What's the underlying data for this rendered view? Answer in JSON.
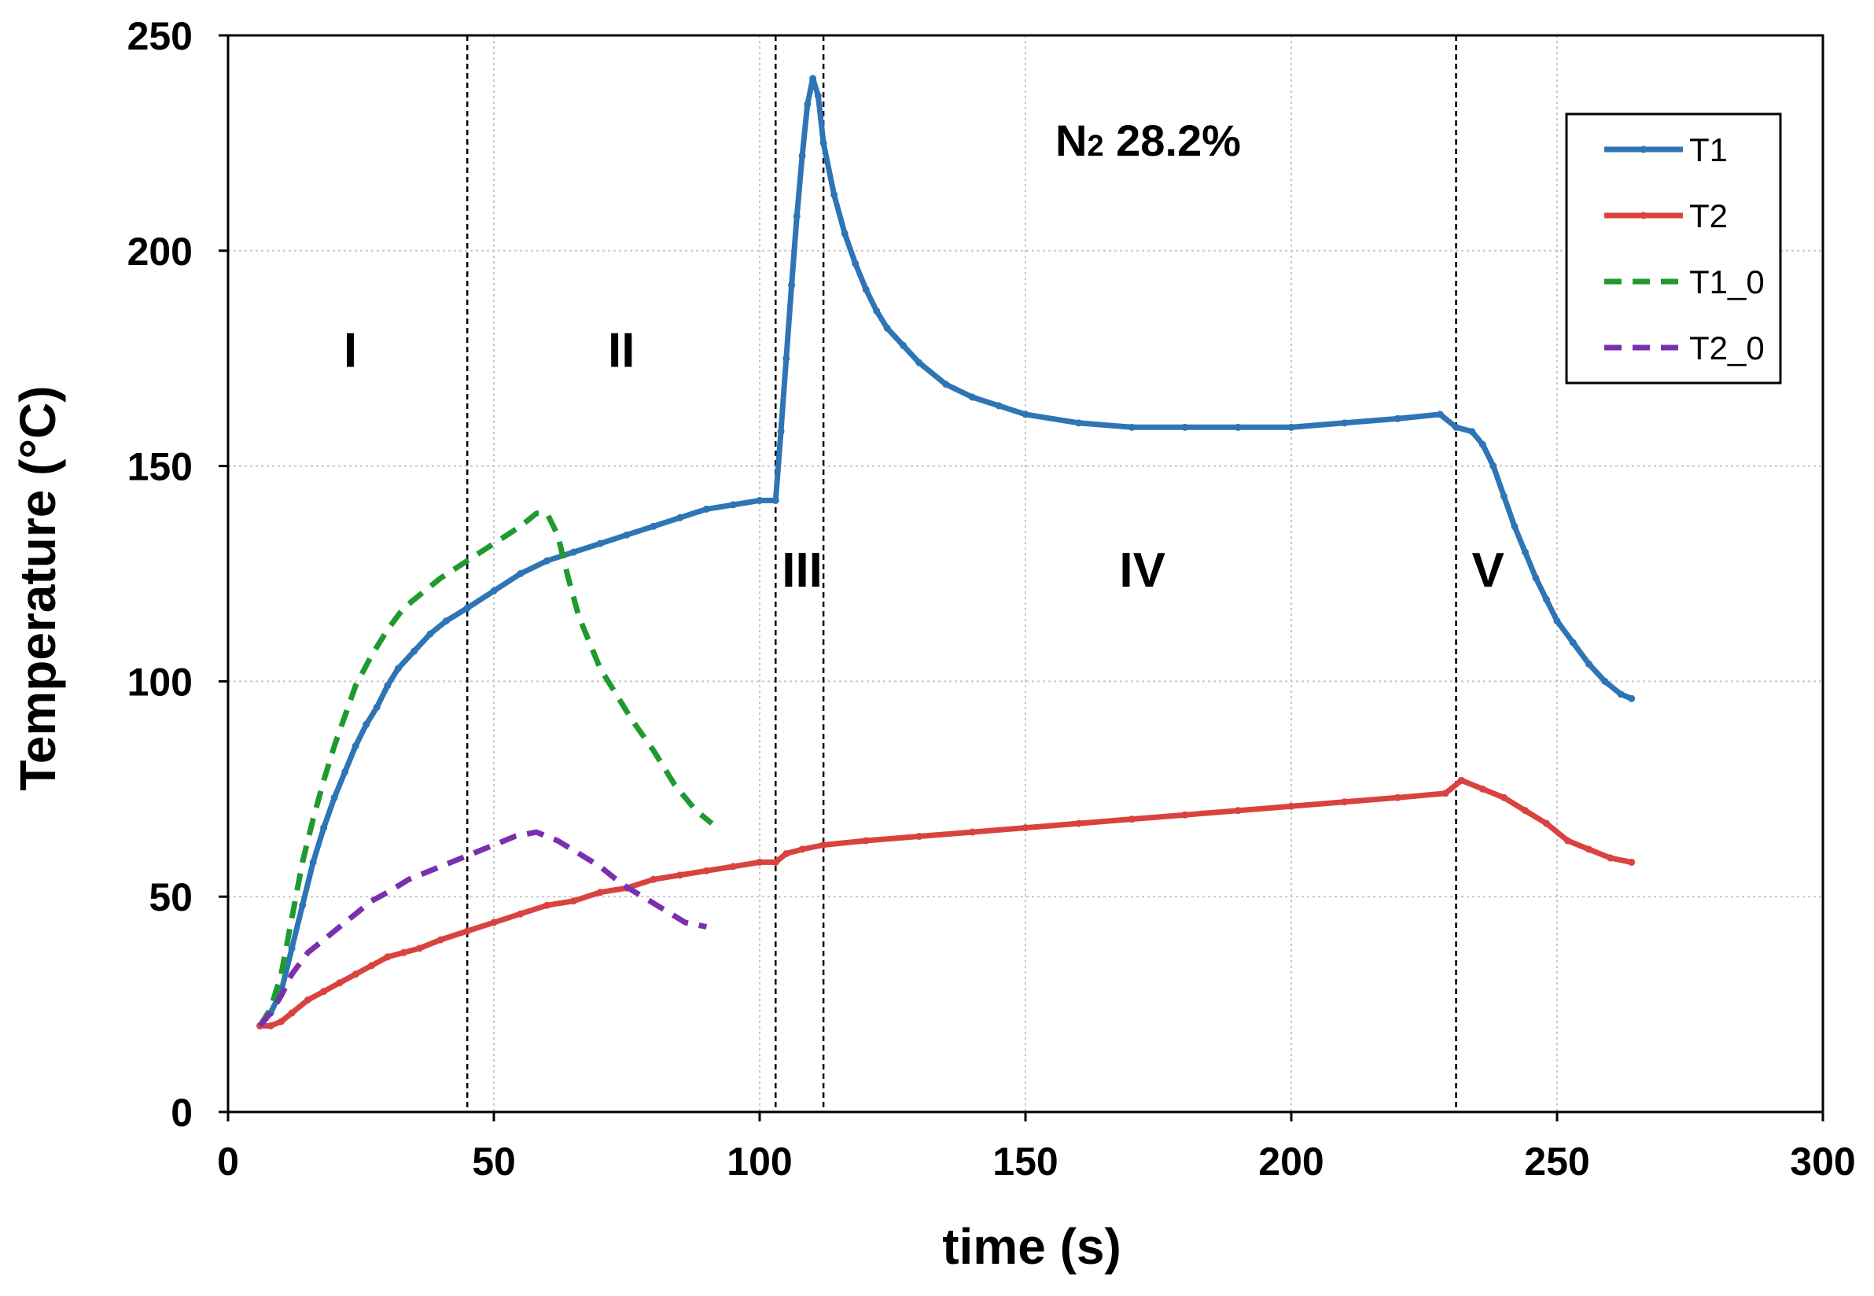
{
  "chart_data": {
    "type": "line",
    "title": "",
    "xlabel": "time (s)",
    "ylabel": "Temperature (°C)",
    "xlim": [
      0,
      300
    ],
    "ylim": [
      0,
      250
    ],
    "x_ticks": [
      0,
      50,
      100,
      150,
      200,
      250,
      300
    ],
    "y_ticks": [
      0,
      50,
      100,
      150,
      200,
      250
    ],
    "grid": true,
    "legend_position": "top-right",
    "annotation": {
      "base": "N",
      "subscript": "2",
      "suffix": " 28.2%"
    },
    "stage_boundaries": [
      45,
      103,
      112,
      231
    ],
    "stages": [
      {
        "label": "I",
        "x": 23,
        "y": 177
      },
      {
        "label": "II",
        "x": 74,
        "y": 177
      },
      {
        "label": "III",
        "x": 108,
        "y": 126
      },
      {
        "label": "IV",
        "x": 172,
        "y": 126
      },
      {
        "label": "V",
        "x": 237,
        "y": 126
      }
    ],
    "series": [
      {
        "name": "T1",
        "color": "#2E75B6",
        "dash": "solid",
        "markers": true,
        "points": [
          [
            6,
            20
          ],
          [
            8,
            23
          ],
          [
            10,
            28
          ],
          [
            12,
            38
          ],
          [
            14,
            48
          ],
          [
            16,
            58
          ],
          [
            18,
            66
          ],
          [
            20,
            73
          ],
          [
            22,
            79
          ],
          [
            24,
            85
          ],
          [
            26,
            90
          ],
          [
            28,
            94
          ],
          [
            30,
            99
          ],
          [
            32,
            103
          ],
          [
            35,
            107
          ],
          [
            38,
            111
          ],
          [
            41,
            114
          ],
          [
            45,
            117
          ],
          [
            50,
            121
          ],
          [
            55,
            125
          ],
          [
            60,
            128
          ],
          [
            65,
            130
          ],
          [
            70,
            132
          ],
          [
            75,
            134
          ],
          [
            80,
            136
          ],
          [
            85,
            138
          ],
          [
            90,
            140
          ],
          [
            95,
            141
          ],
          [
            100,
            142
          ],
          [
            103,
            142
          ],
          [
            104,
            158
          ],
          [
            105,
            175
          ],
          [
            106,
            192
          ],
          [
            107,
            208
          ],
          [
            108,
            222
          ],
          [
            109,
            234
          ],
          [
            110,
            240
          ],
          [
            111,
            236
          ],
          [
            112,
            225
          ],
          [
            114,
            213
          ],
          [
            116,
            204
          ],
          [
            118,
            197
          ],
          [
            120,
            191
          ],
          [
            122,
            186
          ],
          [
            124,
            182
          ],
          [
            127,
            178
          ],
          [
            130,
            174
          ],
          [
            135,
            169
          ],
          [
            140,
            166
          ],
          [
            145,
            164
          ],
          [
            150,
            162
          ],
          [
            160,
            160
          ],
          [
            170,
            159
          ],
          [
            180,
            159
          ],
          [
            190,
            159
          ],
          [
            200,
            159
          ],
          [
            210,
            160
          ],
          [
            220,
            161
          ],
          [
            228,
            162
          ],
          [
            231,
            159
          ],
          [
            234,
            158
          ],
          [
            236,
            155
          ],
          [
            238,
            150
          ],
          [
            240,
            143
          ],
          [
            242,
            136
          ],
          [
            244,
            130
          ],
          [
            246,
            124
          ],
          [
            248,
            119
          ],
          [
            250,
            114
          ],
          [
            253,
            109
          ],
          [
            256,
            104
          ],
          [
            259,
            100
          ],
          [
            262,
            97
          ],
          [
            264,
            96
          ]
        ]
      },
      {
        "name": "T2",
        "color": "#D9433F",
        "dash": "solid",
        "markers": true,
        "points": [
          [
            6,
            20
          ],
          [
            8,
            20
          ],
          [
            10,
            21
          ],
          [
            12,
            23
          ],
          [
            15,
            26
          ],
          [
            18,
            28
          ],
          [
            21,
            30
          ],
          [
            24,
            32
          ],
          [
            27,
            34
          ],
          [
            30,
            36
          ],
          [
            33,
            37
          ],
          [
            36,
            38
          ],
          [
            40,
            40
          ],
          [
            45,
            42
          ],
          [
            50,
            44
          ],
          [
            55,
            46
          ],
          [
            60,
            48
          ],
          [
            65,
            49
          ],
          [
            70,
            51
          ],
          [
            75,
            52
          ],
          [
            80,
            54
          ],
          [
            85,
            55
          ],
          [
            90,
            56
          ],
          [
            95,
            57
          ],
          [
            100,
            58
          ],
          [
            103,
            58
          ],
          [
            105,
            60
          ],
          [
            108,
            61
          ],
          [
            112,
            62
          ],
          [
            120,
            63
          ],
          [
            130,
            64
          ],
          [
            140,
            65
          ],
          [
            150,
            66
          ],
          [
            160,
            67
          ],
          [
            170,
            68
          ],
          [
            180,
            69
          ],
          [
            190,
            70
          ],
          [
            200,
            71
          ],
          [
            210,
            72
          ],
          [
            220,
            73
          ],
          [
            229,
            74
          ],
          [
            232,
            77
          ],
          [
            236,
            75
          ],
          [
            240,
            73
          ],
          [
            244,
            70
          ],
          [
            248,
            67
          ],
          [
            252,
            63
          ],
          [
            256,
            61
          ],
          [
            260,
            59
          ],
          [
            264,
            58
          ]
        ]
      },
      {
        "name": "T1_0",
        "color": "#1F9A2E",
        "dash": "dashed",
        "markers": false,
        "points": [
          [
            6,
            20
          ],
          [
            8,
            24
          ],
          [
            10,
            32
          ],
          [
            12,
            45
          ],
          [
            14,
            58
          ],
          [
            16,
            68
          ],
          [
            18,
            77
          ],
          [
            20,
            85
          ],
          [
            22,
            92
          ],
          [
            24,
            99
          ],
          [
            27,
            106
          ],
          [
            30,
            112
          ],
          [
            33,
            117
          ],
          [
            36,
            120
          ],
          [
            40,
            124
          ],
          [
            45,
            128
          ],
          [
            50,
            132
          ],
          [
            55,
            136
          ],
          [
            58,
            139
          ],
          [
            60,
            139
          ],
          [
            62,
            134
          ],
          [
            64,
            124
          ],
          [
            66,
            115
          ],
          [
            68,
            109
          ],
          [
            70,
            103
          ],
          [
            73,
            97
          ],
          [
            76,
            91
          ],
          [
            80,
            84
          ],
          [
            84,
            76
          ],
          [
            88,
            70
          ],
          [
            91,
            67
          ]
        ]
      },
      {
        "name": "T2_0",
        "color": "#7A2FAE",
        "dash": "dashed",
        "markers": false,
        "points": [
          [
            6,
            20
          ],
          [
            8,
            23
          ],
          [
            10,
            27
          ],
          [
            12,
            32
          ],
          [
            15,
            37
          ],
          [
            18,
            40
          ],
          [
            21,
            43
          ],
          [
            24,
            46
          ],
          [
            27,
            49
          ],
          [
            30,
            51
          ],
          [
            34,
            54
          ],
          [
            38,
            56
          ],
          [
            42,
            58
          ],
          [
            46,
            60
          ],
          [
            50,
            62
          ],
          [
            54,
            64
          ],
          [
            58,
            65
          ],
          [
            62,
            63
          ],
          [
            66,
            60
          ],
          [
            70,
            57
          ],
          [
            74,
            53
          ],
          [
            78,
            50
          ],
          [
            82,
            47
          ],
          [
            86,
            44
          ],
          [
            90,
            43
          ]
        ]
      }
    ]
  }
}
